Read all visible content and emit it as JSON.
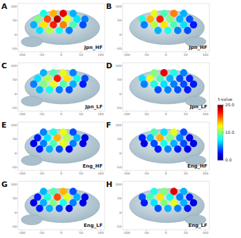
{
  "chart_data": [
    {
      "type": "scatter",
      "panel": "A",
      "title": "Jpn_HF",
      "x": [
        -45,
        -20,
        5,
        30,
        -60,
        -35,
        -10,
        15,
        40,
        60,
        -70,
        -45,
        -20,
        5,
        30,
        55,
        -55,
        -30,
        -5,
        20
      ],
      "values": [
        75,
        75,
        75,
        75,
        55,
        55,
        55,
        55,
        55,
        55,
        35,
        35,
        35,
        35,
        35,
        35,
        15,
        15,
        15,
        15
      ],
      "t_values": [
        8,
        14,
        18,
        6,
        10,
        16,
        19,
        12,
        7,
        5,
        6,
        13,
        17,
        15,
        9,
        4,
        7,
        11,
        8,
        5
      ],
      "xlim": [
        -110,
        110
      ],
      "ylim": [
        -60,
        110
      ],
      "xticks": [
        -100,
        -50,
        0,
        50,
        100
      ],
      "yticks": [
        -50,
        0,
        50,
        100
      ]
    },
    {
      "type": "scatter",
      "panel": "B",
      "title": "Jpn_HF",
      "x": [
        -30,
        -5,
        20,
        45,
        -60,
        -40,
        -15,
        10,
        35,
        60,
        -55,
        -30,
        -5,
        20,
        45,
        70,
        -20,
        5,
        30,
        55
      ],
      "values": [
        75,
        75,
        75,
        75,
        55,
        55,
        55,
        55,
        55,
        55,
        35,
        35,
        35,
        35,
        35,
        35,
        15,
        15,
        15,
        15
      ],
      "t_values": [
        12,
        9,
        15,
        6,
        8,
        14,
        17,
        10,
        6,
        4,
        5,
        11,
        13,
        9,
        7,
        3,
        6,
        8,
        5,
        4
      ],
      "xlim": [
        -110,
        110
      ],
      "ylim": [
        -60,
        110
      ],
      "xticks": [
        -100,
        -50,
        0,
        50,
        100
      ],
      "yticks": [
        -50,
        0,
        50,
        100
      ]
    },
    {
      "type": "scatter",
      "panel": "C",
      "title": "Jpn_LF",
      "x": [
        -45,
        -20,
        5,
        30,
        -60,
        -35,
        -10,
        15,
        40,
        60,
        -70,
        -45,
        -20,
        5,
        30,
        55,
        -55,
        -30,
        -5,
        20
      ],
      "values": [
        75,
        75,
        75,
        75,
        55,
        55,
        55,
        55,
        55,
        55,
        35,
        35,
        35,
        35,
        35,
        35,
        15,
        15,
        15,
        15
      ],
      "t_values": [
        6,
        9,
        12,
        5,
        7,
        11,
        17,
        13,
        8,
        4,
        5,
        10,
        12,
        9,
        6,
        3,
        6,
        8,
        5,
        4
      ],
      "xlim": [
        -110,
        110
      ],
      "ylim": [
        -60,
        110
      ],
      "xticks": [
        -100,
        -50,
        0,
        50,
        100
      ],
      "yticks": [
        -50,
        0,
        50,
        100
      ]
    },
    {
      "type": "scatter",
      "panel": "D",
      "title": "Jpn_LF",
      "x": [
        -30,
        -5,
        20,
        45,
        -60,
        -40,
        -15,
        10,
        35,
        60,
        -55,
        -30,
        -5,
        20,
        45,
        70,
        -20,
        5,
        30,
        55
      ],
      "values": [
        75,
        75,
        75,
        75,
        55,
        55,
        55,
        55,
        55,
        55,
        35,
        35,
        35,
        35,
        35,
        35,
        15,
        15,
        15,
        15
      ],
      "t_values": [
        10,
        18,
        8,
        5,
        7,
        12,
        9,
        6,
        4,
        3,
        5,
        8,
        7,
        5,
        4,
        3,
        4,
        5,
        4,
        3
      ],
      "xlim": [
        -110,
        110
      ],
      "ylim": [
        -60,
        110
      ],
      "xticks": [
        -100,
        -50,
        0,
        50,
        100
      ],
      "yticks": [
        -50,
        0,
        50,
        100
      ]
    },
    {
      "type": "scatter",
      "panel": "E",
      "title": "Eng_HF",
      "x": [
        -45,
        -20,
        5,
        30,
        -60,
        -35,
        -10,
        15,
        40,
        60,
        -70,
        -45,
        -20,
        5,
        30,
        55,
        -55,
        -30,
        -5,
        20
      ],
      "values": [
        75,
        75,
        75,
        75,
        55,
        55,
        55,
        55,
        55,
        55,
        35,
        35,
        35,
        35,
        35,
        35,
        15,
        15,
        15,
        15
      ],
      "t_values": [
        5,
        8,
        12,
        4,
        3,
        7,
        14,
        11,
        6,
        2,
        2,
        5,
        9,
        12,
        5,
        2,
        3,
        6,
        4,
        2
      ],
      "xlim": [
        -110,
        110
      ],
      "ylim": [
        -60,
        110
      ],
      "xticks": [
        -100,
        -50,
        0,
        50,
        100
      ],
      "yticks": [
        -50,
        0,
        50,
        100
      ]
    },
    {
      "type": "scatter",
      "panel": "F",
      "title": "Eng_HF",
      "x": [
        -30,
        -5,
        20,
        45,
        -60,
        -40,
        -15,
        10,
        35,
        60,
        -55,
        -30,
        -5,
        20,
        45,
        70,
        -20,
        5,
        30,
        55
      ],
      "values": [
        75,
        75,
        75,
        75,
        55,
        55,
        55,
        55,
        55,
        55,
        35,
        35,
        35,
        35,
        35,
        35,
        15,
        15,
        15,
        15
      ],
      "t_values": [
        9,
        7,
        12,
        4,
        3,
        6,
        14,
        10,
        5,
        2,
        2,
        4,
        8,
        6,
        4,
        2,
        3,
        5,
        3,
        2
      ],
      "xlim": [
        -110,
        110
      ],
      "ylim": [
        -60,
        110
      ],
      "xticks": [
        -100,
        -50,
        0,
        50,
        100
      ],
      "yticks": [
        -50,
        0,
        50,
        100
      ]
    },
    {
      "type": "scatter",
      "panel": "G",
      "title": "Eng_LF",
      "x": [
        -45,
        -20,
        5,
        30,
        -60,
        -35,
        -10,
        15,
        40,
        60,
        -70,
        -45,
        -20,
        5,
        30,
        55,
        -55,
        -30,
        -5,
        20
      ],
      "values": [
        75,
        75,
        75,
        75,
        55,
        55,
        55,
        55,
        55,
        55,
        35,
        35,
        35,
        35,
        35,
        35,
        15,
        15,
        15,
        15
      ],
      "t_values": [
        6,
        9,
        14,
        4,
        3,
        8,
        16,
        12,
        6,
        2,
        2,
        6,
        10,
        8,
        5,
        2,
        3,
        6,
        4,
        2
      ],
      "xlim": [
        -110,
        110
      ],
      "ylim": [
        -60,
        110
      ],
      "xticks": [
        -100,
        -50,
        0,
        50,
        100
      ],
      "yticks": [
        -50,
        0,
        50,
        100
      ]
    },
    {
      "type": "scatter",
      "panel": "H",
      "title": "Eng_LF",
      "x": [
        -30,
        -5,
        20,
        45,
        -60,
        -40,
        -15,
        10,
        35,
        60,
        -55,
        -30,
        -5,
        20,
        45,
        70,
        -20,
        5,
        30,
        55
      ],
      "values": [
        75,
        75,
        75,
        75,
        55,
        55,
        55,
        55,
        55,
        55,
        35,
        35,
        35,
        35,
        35,
        35,
        15,
        15,
        15,
        15
      ],
      "t_values": [
        8,
        10,
        18,
        6,
        4,
        9,
        13,
        8,
        5,
        3,
        3,
        7,
        10,
        12,
        6,
        2,
        4,
        6,
        5,
        3
      ],
      "xlim": [
        -110,
        110
      ],
      "ylim": [
        -60,
        110
      ],
      "xticks": [
        -100,
        -50,
        0,
        50,
        100
      ],
      "yticks": [
        -50,
        0,
        50,
        100
      ]
    }
  ],
  "colorbar": {
    "title": "t-value",
    "range": [
      0,
      20
    ],
    "ticks": [
      {
        "value": 0,
        "label": "0.0"
      },
      {
        "value": 10,
        "label": "10.0"
      },
      {
        "value": 20,
        "label": "20.0"
      }
    ]
  }
}
